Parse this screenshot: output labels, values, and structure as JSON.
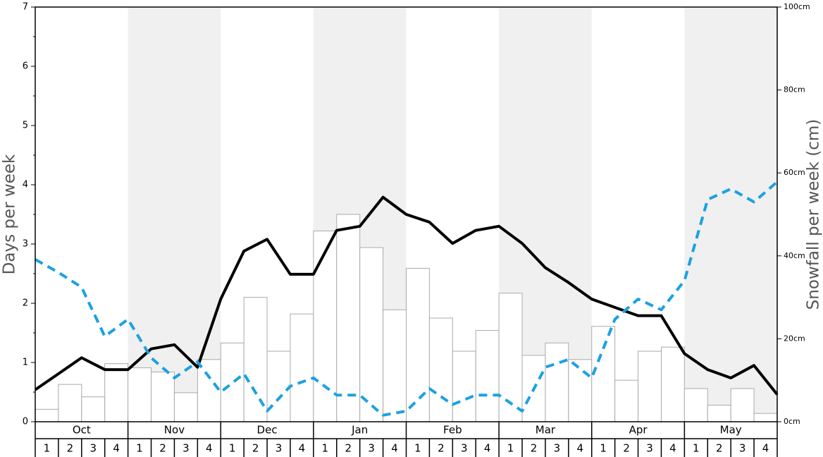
{
  "chart_data": {
    "type": "bar",
    "y_label": "Days per week",
    "y2_label": "Snowfall per week (cm)",
    "months": [
      "Oct",
      "Nov",
      "Dec",
      "Jan",
      "Feb",
      "Mar",
      "Apr",
      "May"
    ],
    "weeks": [
      1,
      2,
      3,
      4
    ],
    "ylim": [
      0,
      7
    ],
    "yticks": [
      0,
      1,
      2,
      3,
      4,
      5,
      6,
      7
    ],
    "y2lim": [
      0,
      100
    ],
    "y2ticks": [
      {
        "value": 0,
        "label": "0cm"
      },
      {
        "value": 20,
        "label": "20cm"
      },
      {
        "value": 40,
        "label": "40cm"
      },
      {
        "value": 60,
        "label": "60cm"
      },
      {
        "value": 80,
        "label": "80cm"
      },
      {
        "value": 100,
        "label": "100cm"
      }
    ],
    "bars": {
      "axis": "y2",
      "color": "#ffffff",
      "values": [
        3,
        9,
        6,
        14,
        13,
        12,
        7,
        15,
        19,
        30,
        17,
        26,
        46,
        50,
        42,
        27,
        37,
        25,
        17,
        22,
        31,
        16,
        19,
        15,
        23,
        10,
        17,
        18,
        8,
        4,
        8,
        2
      ]
    },
    "series": [
      {
        "color": "#000000",
        "dashed": false,
        "values": [
          0.54,
          0.81,
          1.08,
          0.88,
          0.88,
          1.23,
          1.3,
          0.92,
          2.07,
          2.88,
          3.08,
          2.49,
          2.49,
          3.23,
          3.3,
          3.79,
          3.5,
          3.37,
          3.01,
          3.23,
          3.3,
          3.01,
          2.6,
          2.35,
          2.07,
          1.93,
          1.79,
          1.79,
          1.15,
          0.88,
          0.74,
          0.95,
          0.46
        ]
      },
      {
        "color": "#1ba1e2",
        "dashed": true,
        "values": [
          2.74,
          2.52,
          2.27,
          1.44,
          1.73,
          1.08,
          0.74,
          1.01,
          0.5,
          0.81,
          0.18,
          0.6,
          0.74,
          0.45,
          0.45,
          0.11,
          0.18,
          0.56,
          0.29,
          0.45,
          0.45,
          0.18,
          0.92,
          1.05,
          0.74,
          1.73,
          2.07,
          1.89,
          2.38,
          3.75,
          3.93,
          3.71,
          4.05
        ]
      }
    ]
  }
}
